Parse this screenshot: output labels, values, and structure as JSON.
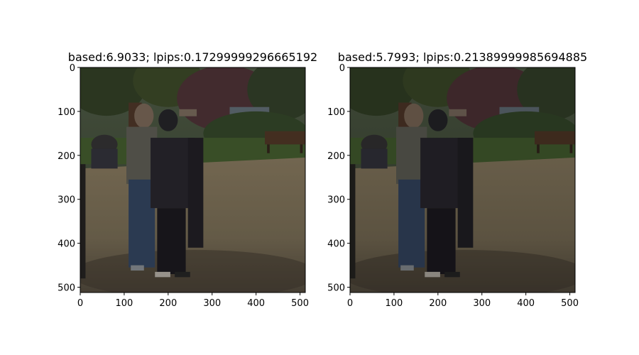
{
  "chart_data": [
    {
      "type": "image",
      "title": "based:6.9033; lpips:0.17299999296665192",
      "xlim": [
        0,
        512
      ],
      "ylim": [
        512,
        0
      ],
      "xticks": [
        0,
        100,
        200,
        300,
        400,
        500
      ],
      "yticks": [
        0,
        100,
        200,
        300,
        400,
        500
      ],
      "image_brightness": 0.74,
      "image_content": "park photo: people in masks standing on sandy path, trees and bench behind"
    },
    {
      "type": "image",
      "title": "based:5.7993; lpips:0.21389999985694885",
      "xlim": [
        0,
        512
      ],
      "ylim": [
        512,
        0
      ],
      "xticks": [
        0,
        100,
        200,
        300,
        400,
        500
      ],
      "yticks": [
        0,
        100,
        200,
        300,
        400,
        500
      ],
      "image_brightness": 0.68,
      "image_content": "park photo: people in masks standing on sandy path, trees and bench behind"
    }
  ]
}
